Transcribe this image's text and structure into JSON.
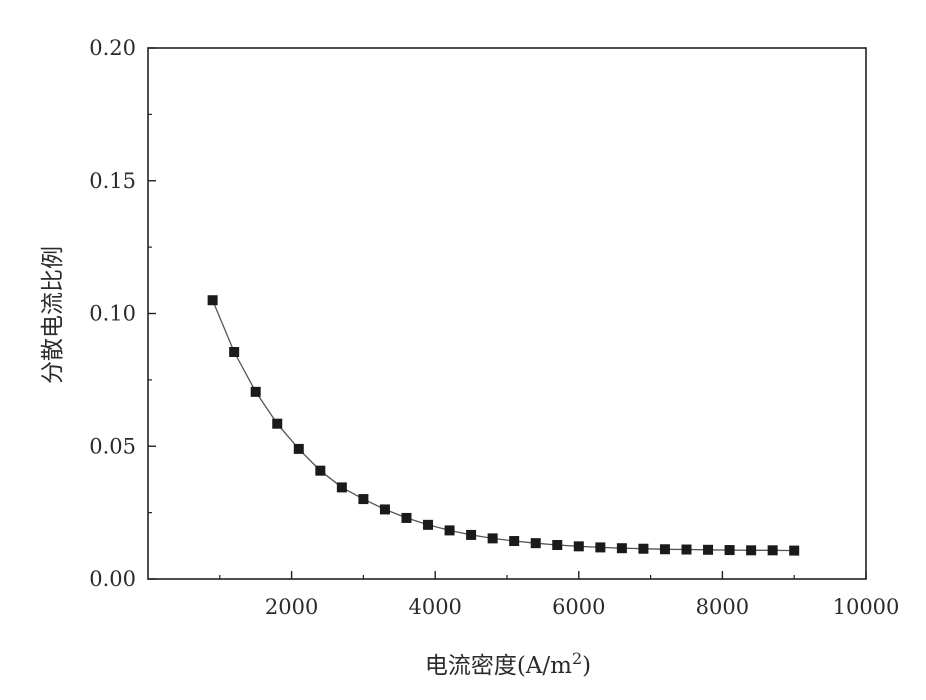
{
  "chart_data": {
    "type": "line",
    "title": "",
    "xlabel": "电流密度(A/m²)",
    "ylabel": "分散电流比例",
    "xlim": [
      0,
      10000
    ],
    "ylim": [
      0,
      0.2
    ],
    "x_ticks": [
      2000,
      4000,
      6000,
      8000,
      10000
    ],
    "x_tick_labels": [
      "2000",
      "4000",
      "6000",
      "8000",
      "10000"
    ],
    "y_ticks": [
      0,
      0.05,
      0.1,
      0.15,
      0.2
    ],
    "y_tick_labels": [
      "0.00",
      "0.05",
      "0.10",
      "0.15",
      "0.20"
    ],
    "grid": false,
    "legend": "none",
    "marker": "square",
    "series": [
      {
        "x": [
          900,
          1200,
          1500,
          1800,
          2100,
          2400,
          2700,
          3000,
          3300,
          3600,
          3900,
          4200,
          4500,
          4800,
          5100,
          5400,
          5700,
          6000,
          6300,
          6600,
          6900,
          7200,
          7500,
          7800,
          8100,
          8400,
          8700,
          9000
        ],
        "values": [
          0.105,
          0.0855,
          0.0705,
          0.0585,
          0.049,
          0.0408,
          0.0345,
          0.0301,
          0.0262,
          0.023,
          0.0204,
          0.0183,
          0.0166,
          0.0153,
          0.0143,
          0.0135,
          0.0128,
          0.0123,
          0.0119,
          0.0116,
          0.0114,
          0.0112,
          0.0111,
          0.011,
          0.0109,
          0.0108,
          0.0108,
          0.0107
        ]
      }
    ]
  },
  "colors": {
    "marker": "#1a1a1a",
    "line": "#555555",
    "axis": "#222222"
  }
}
